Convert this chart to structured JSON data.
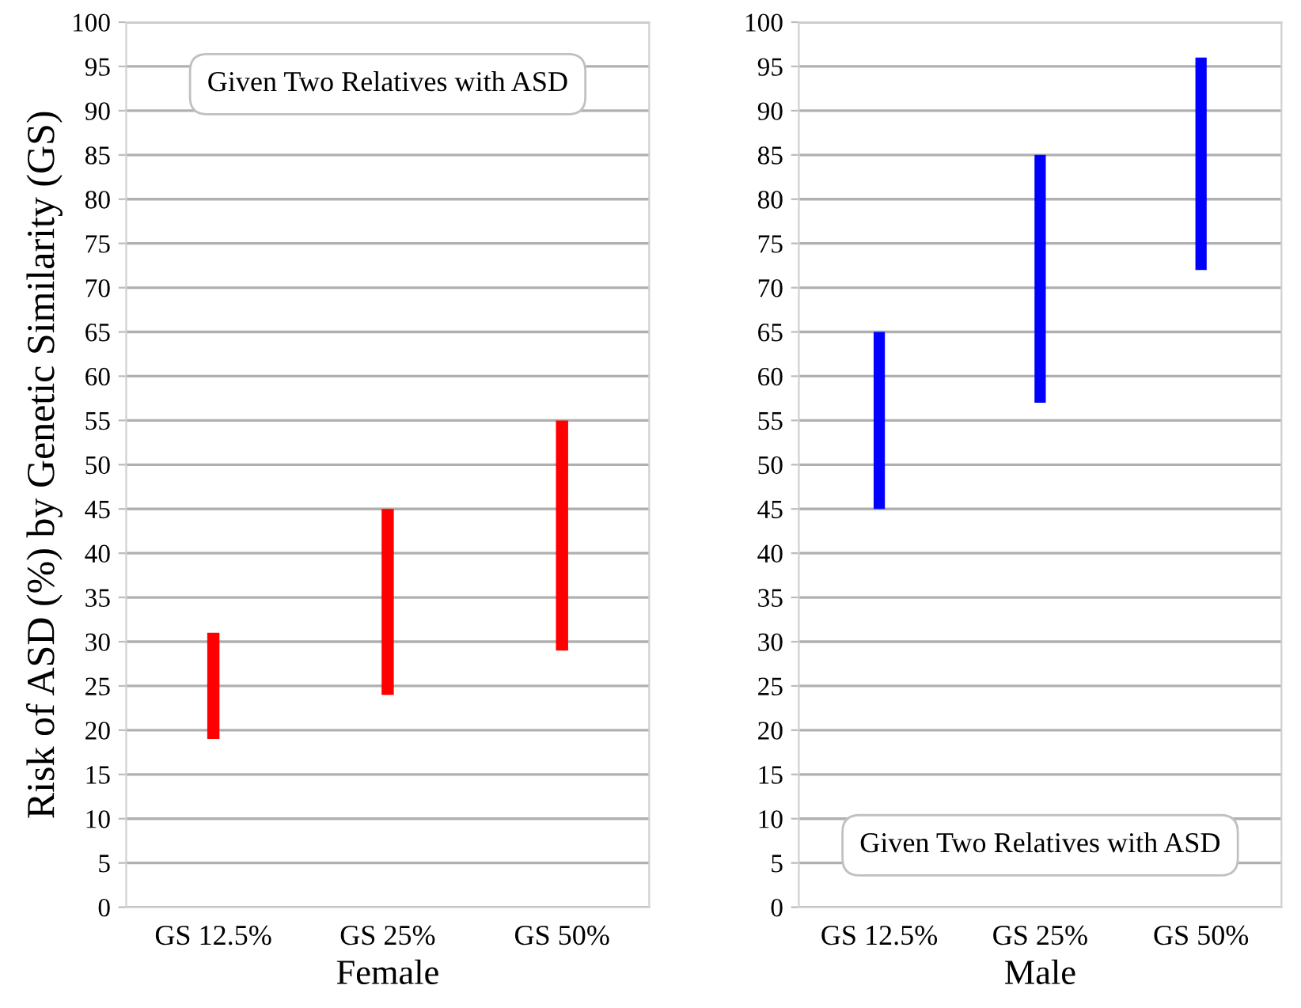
{
  "chart_data": [
    {
      "type": "bar",
      "categories": [
        "GS 12.5%",
        "GS 25%",
        "GS 50%"
      ],
      "xlabel": "Female",
      "ylabel": "Risk of ASD (%) by Genetic Similarity (GS)",
      "series": [
        {
          "color": "#ff0000",
          "values": [
            12,
            21,
            26
          ],
          "base": [
            19,
            24,
            29
          ]
        }
      ],
      "ylim": [
        0,
        100
      ],
      "yticks": [
        0,
        5,
        10,
        15,
        20,
        25,
        30,
        35,
        40,
        45,
        50,
        55,
        60,
        65,
        70,
        75,
        80,
        85,
        90,
        95,
        100
      ],
      "grid": "y",
      "annotations": [
        "Given Two Relatives with ASD"
      ]
    },
    {
      "type": "bar",
      "categories": [
        "GS 12.5%",
        "GS 25%",
        "GS 50%"
      ],
      "xlabel": "Male",
      "series": [
        {
          "color": "#0000ff",
          "values": [
            20,
            28,
            24
          ],
          "base": [
            45,
            57,
            72
          ]
        }
      ],
      "ylim": [
        0,
        100
      ],
      "yticks": [
        0,
        5,
        10,
        15,
        20,
        25,
        30,
        35,
        40,
        45,
        50,
        55,
        60,
        65,
        70,
        75,
        80,
        85,
        90,
        95,
        100
      ],
      "grid": "y",
      "annotations": [
        "Given Two Relatives with ASD"
      ]
    }
  ]
}
